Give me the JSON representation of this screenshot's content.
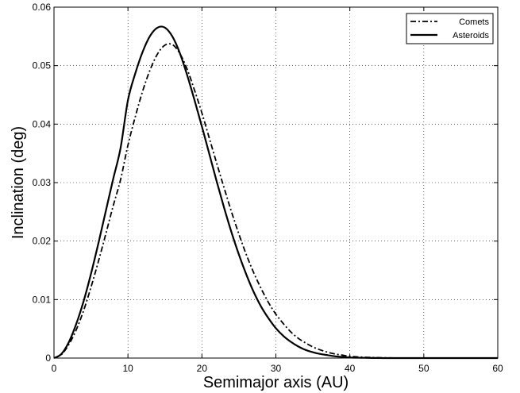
{
  "chart_data": {
    "type": "line",
    "title": "",
    "xlabel": "Semimajor axis (AU)",
    "ylabel": "Inclination (deg)",
    "xlim": [
      0,
      60
    ],
    "ylim": [
      0,
      0.06
    ],
    "xticks": [
      0,
      10,
      20,
      30,
      40,
      50,
      60
    ],
    "xtick_labels": [
      "0",
      "10",
      "20",
      "30",
      "40",
      "50",
      "60"
    ],
    "yticks": [
      0,
      0.01,
      0.02,
      0.03,
      0.04,
      0.05,
      0.06
    ],
    "ytick_labels": [
      "0",
      "0.01",
      "0.02",
      "0.03",
      "0.04",
      "0.05",
      "0.06"
    ],
    "grid": true,
    "legend_position": "top-right",
    "series": [
      {
        "name": "Comets",
        "style": "dash-dot",
        "color": "#000000",
        "x": [
          0,
          1,
          2,
          3,
          4,
          5,
          6,
          7,
          8,
          9,
          10,
          11,
          12,
          13,
          14,
          15,
          16,
          17,
          18,
          19,
          20,
          21,
          22,
          23,
          24,
          25,
          26,
          27,
          28,
          29,
          30,
          31,
          32,
          33,
          34,
          35,
          36,
          37,
          38,
          39,
          40,
          41,
          42,
          43,
          44,
          45,
          46,
          47,
          48,
          49,
          50,
          55,
          60
        ],
        "y": [
          0.0,
          0.0006,
          0.0023,
          0.0048,
          0.0081,
          0.0121,
          0.0165,
          0.0212,
          0.026,
          0.0305,
          0.0364,
          0.0413,
          0.0457,
          0.0493,
          0.052,
          0.0535,
          0.0536,
          0.0521,
          0.0494,
          0.0458,
          0.0419,
          0.0376,
          0.0333,
          0.0291,
          0.025,
          0.0212,
          0.0177,
          0.0146,
          0.0119,
          0.0095,
          0.0075,
          0.0059,
          0.0045,
          0.0034,
          0.0026,
          0.0019,
          0.0014,
          0.001,
          0.0007,
          0.0005,
          0.0003,
          0.0002,
          0.00014,
          0.0001,
          6e-05,
          4e-05,
          2e-05,
          1e-05,
          0.0,
          0.0,
          0.0,
          0.0,
          0.0
        ]
      },
      {
        "name": "Asteroids",
        "style": "solid",
        "color": "#000000",
        "x": [
          0,
          1,
          2,
          3,
          4,
          5,
          6,
          7,
          8,
          9,
          10,
          11,
          12,
          13,
          14,
          15,
          16,
          17,
          18,
          19,
          20,
          21,
          22,
          23,
          24,
          25,
          26,
          27,
          28,
          29,
          30,
          31,
          32,
          33,
          34,
          35,
          36,
          37,
          38,
          39,
          40,
          41,
          42,
          43,
          44,
          45,
          46,
          47,
          48,
          49,
          50,
          55,
          60
        ],
        "y": [
          0.0,
          0.0007,
          0.0027,
          0.0058,
          0.0097,
          0.0144,
          0.0196,
          0.0251,
          0.0306,
          0.0359,
          0.0441,
          0.0487,
          0.0524,
          0.0551,
          0.0565,
          0.0565,
          0.055,
          0.0522,
          0.0484,
          0.0441,
          0.0396,
          0.0349,
          0.0302,
          0.0257,
          0.0215,
          0.0177,
          0.0143,
          0.0113,
          0.0088,
          0.0068,
          0.0051,
          0.0038,
          0.0028,
          0.002,
          0.0014,
          0.001,
          0.0007,
          0.0005,
          0.0003,
          0.0002,
          0.0001,
          6e-05,
          4e-05,
          2e-05,
          1e-05,
          0.0,
          0.0,
          0.0,
          0.0,
          0.0,
          0.0,
          0.0,
          0.0
        ]
      }
    ]
  }
}
